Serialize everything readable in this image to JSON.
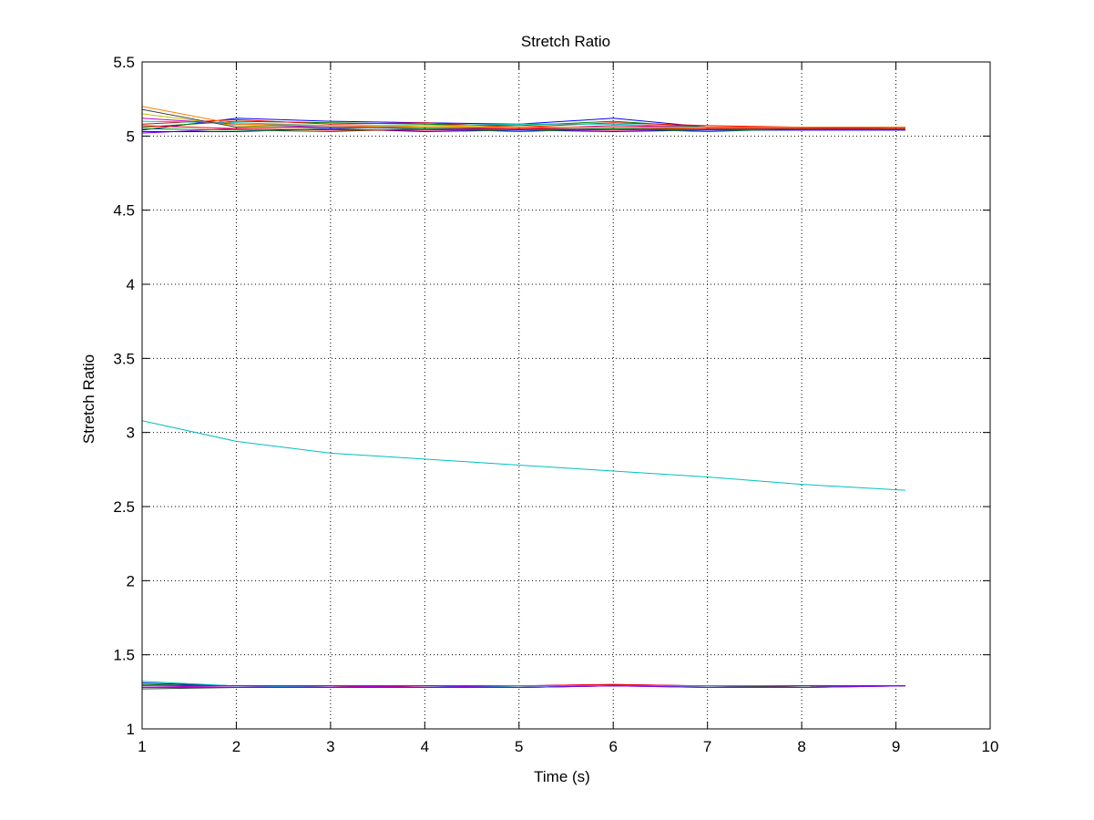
{
  "chart_data": {
    "type": "line",
    "title": "Stretch Ratio",
    "xlabel": "Time (s)",
    "ylabel": "Stretch Ratio",
    "xlim": [
      1,
      10
    ],
    "ylim": [
      1,
      5.5
    ],
    "xticks": [
      1,
      2,
      3,
      4,
      5,
      6,
      7,
      8,
      9,
      10
    ],
    "yticks": [
      1,
      1.5,
      2,
      2.5,
      3,
      3.5,
      4,
      4.5,
      5,
      5.5
    ],
    "grid": true,
    "legend": "none",
    "series": [
      {
        "color": "#0000ff",
        "x": [
          1,
          2,
          3,
          4,
          5,
          6,
          7,
          8,
          9.1
        ],
        "y": [
          5.04,
          5.12,
          5.1,
          5.09,
          5.08,
          5.12,
          5.06,
          5.06,
          5.06
        ]
      },
      {
        "color": "#008000",
        "x": [
          1,
          2,
          3,
          4,
          5,
          6,
          7,
          8,
          9.1
        ],
        "y": [
          5.06,
          5.1,
          5.09,
          5.08,
          5.07,
          5.1,
          5.06,
          5.06,
          5.05
        ]
      },
      {
        "color": "#ff0000",
        "x": [
          1,
          2,
          3,
          4,
          5,
          6,
          7,
          8,
          9.1
        ],
        "y": [
          5.08,
          5.11,
          5.08,
          5.09,
          5.06,
          5.09,
          5.07,
          5.06,
          5.06
        ]
      },
      {
        "color": "#00bfbf",
        "x": [
          1,
          2,
          3,
          4,
          5,
          6,
          7,
          8,
          9.1
        ],
        "y": [
          5.1,
          5.09,
          5.07,
          5.07,
          5.08,
          5.08,
          5.06,
          5.05,
          5.05
        ]
      },
      {
        "color": "#bf00bf",
        "x": [
          1,
          2,
          3,
          4,
          5,
          6,
          7,
          8,
          9.1
        ],
        "y": [
          5.12,
          5.08,
          5.06,
          5.06,
          5.05,
          5.07,
          5.06,
          5.06,
          5.05
        ]
      },
      {
        "color": "#bfbf00",
        "x": [
          1,
          2,
          3,
          4,
          5,
          6,
          7,
          8,
          9.1
        ],
        "y": [
          5.15,
          5.07,
          5.05,
          5.07,
          5.06,
          5.06,
          5.05,
          5.05,
          5.05
        ]
      },
      {
        "color": "#404040",
        "x": [
          1,
          2,
          3,
          4,
          5,
          6,
          7,
          8,
          9.1
        ],
        "y": [
          5.18,
          5.06,
          5.06,
          5.05,
          5.05,
          5.05,
          5.05,
          5.05,
          5.05
        ]
      },
      {
        "color": "#ff7f00",
        "x": [
          1,
          2,
          3,
          4,
          5,
          6,
          7,
          8,
          9.1
        ],
        "y": [
          5.2,
          5.08,
          5.07,
          5.06,
          5.06,
          5.06,
          5.06,
          5.06,
          5.06
        ]
      },
      {
        "color": "#7f00ff",
        "x": [
          1,
          2,
          3,
          4,
          5,
          6,
          7,
          8,
          9.1
        ],
        "y": [
          5.02,
          5.05,
          5.04,
          5.04,
          5.04,
          5.04,
          5.04,
          5.04,
          5.04
        ]
      },
      {
        "color": "#0000ff",
        "x": [
          1,
          2,
          3,
          4,
          5,
          6,
          7,
          8,
          9.1
        ],
        "y": [
          5.03,
          5.03,
          5.05,
          5.03,
          5.04,
          5.03,
          5.04,
          5.04,
          5.04
        ]
      },
      {
        "color": "#008000",
        "x": [
          1,
          2,
          3,
          4,
          5,
          6,
          7,
          8,
          9.1
        ],
        "y": [
          5.05,
          5.04,
          5.03,
          5.05,
          5.03,
          5.05,
          5.03,
          5.05,
          5.05
        ]
      },
      {
        "color": "#ff0000",
        "x": [
          1,
          2,
          3,
          4,
          5,
          6,
          7,
          8,
          9.1
        ],
        "y": [
          5.07,
          5.05,
          5.04,
          5.04,
          5.05,
          5.04,
          5.05,
          5.05,
          5.05
        ]
      },
      {
        "color": "#00bfbf",
        "x": [
          1,
          2,
          3,
          4,
          5,
          6,
          7,
          8,
          9.1
        ],
        "y": [
          3.08,
          2.94,
          2.86,
          2.82,
          2.78,
          2.74,
          2.7,
          2.65,
          2.61
        ]
      },
      {
        "color": "#0000ff",
        "x": [
          1,
          2,
          3,
          4,
          5,
          6,
          7,
          8,
          9.1
        ],
        "y": [
          1.31,
          1.29,
          1.29,
          1.29,
          1.29,
          1.3,
          1.29,
          1.29,
          1.29
        ]
      },
      {
        "color": "#008000",
        "x": [
          1,
          2,
          3,
          4,
          5,
          6,
          7,
          8,
          9.1
        ],
        "y": [
          1.3,
          1.29,
          1.28,
          1.29,
          1.28,
          1.29,
          1.29,
          1.28,
          1.29
        ]
      },
      {
        "color": "#ff0000",
        "x": [
          1,
          2,
          3,
          4,
          5,
          6,
          7,
          8,
          9.1
        ],
        "y": [
          1.28,
          1.28,
          1.28,
          1.29,
          1.29,
          1.3,
          1.29,
          1.29,
          1.29
        ]
      },
      {
        "color": "#bf00bf",
        "x": [
          1,
          2,
          3,
          4,
          5,
          6,
          7,
          8,
          9.1
        ],
        "y": [
          1.29,
          1.28,
          1.29,
          1.28,
          1.28,
          1.29,
          1.29,
          1.28,
          1.29
        ]
      },
      {
        "color": "#00bfbf",
        "x": [
          1,
          2,
          3,
          4,
          5,
          6,
          7,
          8,
          9.1
        ],
        "y": [
          1.32,
          1.29,
          1.28,
          1.28,
          1.29,
          1.29,
          1.29,
          1.29,
          1.29
        ]
      },
      {
        "color": "#404040",
        "x": [
          1,
          2,
          3,
          4,
          5,
          6,
          7,
          8,
          9.1
        ],
        "y": [
          1.27,
          1.28,
          1.28,
          1.28,
          1.28,
          1.29,
          1.28,
          1.29,
          1.29
        ]
      },
      {
        "color": "#7f00ff",
        "x": [
          1,
          2,
          3,
          4,
          5,
          6,
          7,
          8,
          9.1
        ],
        "y": [
          1.29,
          1.29,
          1.29,
          1.29,
          1.28,
          1.29,
          1.28,
          1.28,
          1.29
        ]
      }
    ]
  }
}
